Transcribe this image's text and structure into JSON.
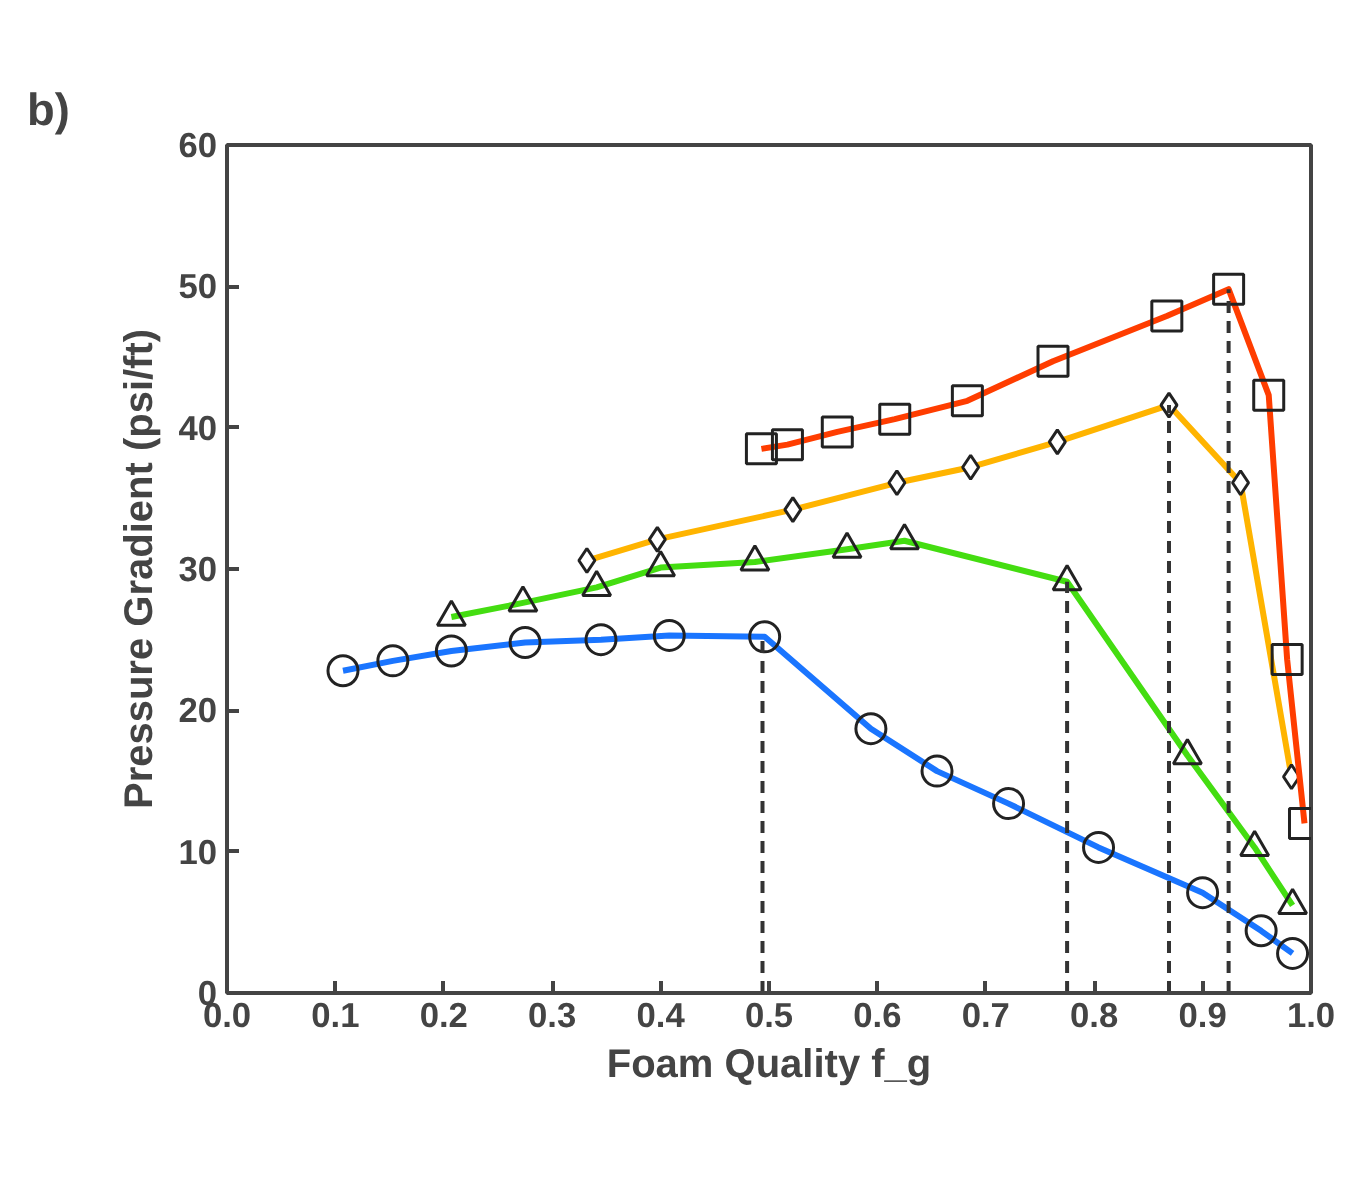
{
  "chart_data": {
    "type": "line",
    "title": "b)",
    "xlabel": "Foam Quality f_g",
    "ylabel": "Pressure Gradient (psi/ft)",
    "xlim": [
      0,
      1
    ],
    "xticks": [
      {
        "value": 0,
        "label": "0.0"
      },
      0.1,
      0.2,
      0.3,
      0.4,
      0.5,
      0.6,
      0.7,
      0.8,
      0.9,
      {
        "value": 1,
        "label": "1.0"
      }
    ],
    "ylim": [
      0,
      60
    ],
    "yticks": [
      0,
      10,
      20,
      30,
      40,
      50,
      60
    ],
    "grid": false,
    "series": [
      {
        "color": "#1a75ff",
        "marker": "circle",
        "x": [
          0.107,
          0.153,
          0.207,
          0.275,
          0.345,
          0.408,
          0.496,
          0.594,
          0.655,
          0.721,
          0.804,
          0.9,
          0.954,
          0.983
        ],
        "values": [
          22.8,
          23.5,
          24.2,
          24.8,
          25.0,
          25.3,
          25.2,
          18.7,
          15.7,
          13.4,
          10.3,
          7.1,
          4.4,
          2.8
        ]
      },
      {
        "color": "#44dd11",
        "marker": "triangle",
        "x": [
          0.207,
          0.273,
          0.341,
          0.4,
          0.487,
          0.572,
          0.625,
          0.775,
          0.886,
          0.948,
          0.983
        ],
        "values": [
          26.6,
          27.6,
          28.7,
          30.1,
          30.5,
          31.4,
          32.0,
          29.1,
          16.8,
          10.3,
          6.2
        ]
      },
      {
        "color": "#ffb400",
        "marker": "diamond",
        "x": [
          0.332,
          0.397,
          0.522,
          0.618,
          0.686,
          0.766,
          0.869,
          0.935,
          0.982
        ],
        "values": [
          30.6,
          32.1,
          34.2,
          36.1,
          37.2,
          39.0,
          41.6,
          36.1,
          15.3
        ]
      },
      {
        "color": "#ff3d00",
        "marker": "square",
        "x": [
          0.493,
          0.517,
          0.563,
          0.616,
          0.683,
          0.762,
          0.867,
          0.924,
          0.961,
          0.978,
          0.994
        ],
        "values": [
          38.5,
          38.8,
          39.7,
          40.6,
          41.9,
          44.7,
          47.9,
          49.8,
          42.3,
          23.6,
          12.0
        ]
      },
      {
        "color": "#333333",
        "marker": "none",
        "line_style": "dashed",
        "x": [
          0.494,
          0.494
        ],
        "values": [
          0,
          25.2
        ]
      },
      {
        "color": "#333333",
        "marker": "none",
        "line_style": "dashed",
        "x": [
          0.775,
          0.775
        ],
        "values": [
          0,
          29.1
        ]
      },
      {
        "color": "#333333",
        "marker": "none",
        "line_style": "dashed",
        "x": [
          0.869,
          0.869
        ],
        "values": [
          0,
          41.6
        ]
      },
      {
        "color": "#333333",
        "marker": "none",
        "line_style": "dashed",
        "x": [
          0.924,
          0.924
        ],
        "values": [
          0,
          49.8
        ]
      }
    ]
  }
}
